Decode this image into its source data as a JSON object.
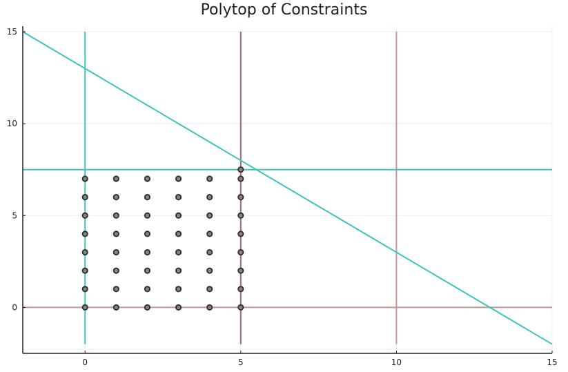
{
  "chart_data": {
    "type": "scatter",
    "title": "Polytop of Constraints",
    "xlabel": "",
    "ylabel": "",
    "xlim": [
      -2,
      15
    ],
    "ylim": [
      -2.5,
      15.3
    ],
    "grid": true,
    "legend": "none",
    "x_ticks": [
      0,
      5,
      10,
      15
    ],
    "y_ticks": [
      0,
      5,
      10,
      15
    ],
    "x_tick_labels": [
      "0",
      "5",
      "10",
      "15"
    ],
    "y_tick_labels": [
      "0",
      "5",
      "10",
      "15"
    ],
    "lines": [
      {
        "id": "vertical-x0",
        "color": "#3cc5b8",
        "points": [
          [
            0,
            -2
          ],
          [
            0,
            15
          ]
        ]
      },
      {
        "id": "vertical-x5",
        "color": "#9a6a66",
        "points": [
          [
            5,
            -2
          ],
          [
            5,
            15
          ]
        ]
      },
      {
        "id": "vertical-x10",
        "color": "#c49894",
        "points": [
          [
            10,
            -2
          ],
          [
            10,
            15
          ]
        ]
      },
      {
        "id": "horizontal-y0",
        "color": "#c49894",
        "points": [
          [
            -2,
            0
          ],
          [
            15,
            0
          ]
        ]
      },
      {
        "id": "horizontal-y7.5",
        "color": "#3cc5b8",
        "points": [
          [
            -2,
            7.5
          ],
          [
            15,
            7.5
          ]
        ]
      },
      {
        "id": "diagonal-x-plus-y-13",
        "color": "#3cc5b8",
        "points": [
          [
            -2,
            15
          ],
          [
            15,
            -2
          ]
        ]
      }
    ],
    "points": {
      "x": [
        0,
        0,
        0,
        0,
        0,
        0,
        0,
        0,
        1,
        1,
        1,
        1,
        1,
        1,
        1,
        1,
        2,
        2,
        2,
        2,
        2,
        2,
        2,
        2,
        3,
        3,
        3,
        3,
        3,
        3,
        3,
        3,
        4,
        4,
        4,
        4,
        4,
        4,
        4,
        4,
        5,
        5,
        5,
        5,
        5,
        5,
        5,
        5,
        5
      ],
      "y": [
        0,
        1,
        2,
        3,
        4,
        5,
        6,
        7,
        0,
        1,
        2,
        3,
        4,
        5,
        6,
        7,
        0,
        1,
        2,
        3,
        4,
        5,
        6,
        7,
        0,
        1,
        2,
        3,
        4,
        5,
        6,
        7,
        0,
        1,
        2,
        3,
        4,
        5,
        6,
        7,
        0,
        1,
        2,
        3,
        4,
        5,
        6,
        7,
        7.5
      ],
      "color": "#333333"
    },
    "colors": {
      "teal": "#3cc5b8",
      "rose": "#c49894",
      "brown": "#9a6a66",
      "grid": "#ebebeb",
      "axis": "#222222"
    }
  }
}
